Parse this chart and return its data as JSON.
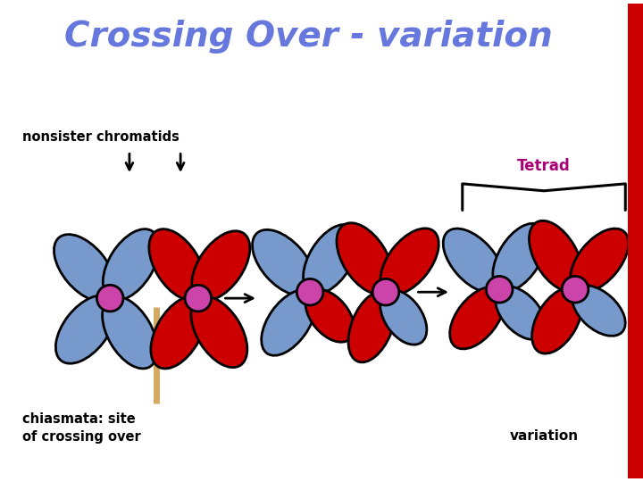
{
  "title": "Crossing Over - variation",
  "title_color": "#6677DD",
  "title_fontsize": 28,
  "bg_color": "#FFFFFF",
  "right_bar_color": "#CC0000",
  "blue_color": "#7799CC",
  "red_color": "#CC0000",
  "pink_color": "#CC44AA",
  "chiasma_color": "#D4AA60",
  "label_nonsister": "nonsister chromatids",
  "label_chiasmata": "chiasmata: site\nof crossing over",
  "label_tetrad": "Tetrad",
  "label_variation": "variation",
  "lw": 2.0
}
